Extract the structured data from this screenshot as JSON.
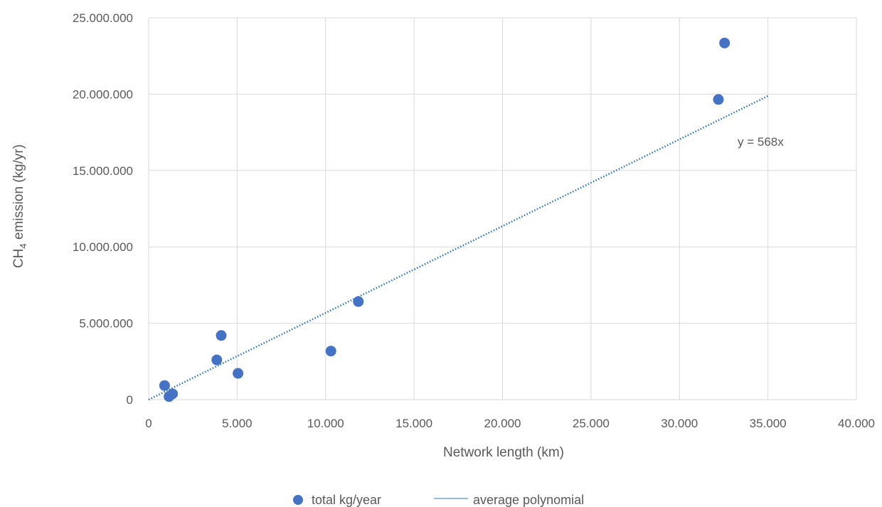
{
  "chart_data": {
    "type": "scatter",
    "xlabel": "Network length (km)",
    "ylabel_main": "CH",
    "ylabel_sub": "4",
    "ylabel_rest": " emission (kg/yr)",
    "xlim": [
      0,
      40000
    ],
    "ylim": [
      0,
      25000000
    ],
    "x_ticks": [
      "0",
      "5.000",
      "10.000",
      "15.000",
      "20.000",
      "25.000",
      "30.000",
      "35.000",
      "40.000"
    ],
    "y_ticks": [
      "0",
      "5.000.000",
      "10.000.000",
      "15.000.000",
      "20.000.000",
      "25.000.000"
    ],
    "grid": true,
    "series": [
      {
        "name": "total kg/year",
        "marker": "circle",
        "color": "#4472c4",
        "points": [
          [
            900,
            920000
          ],
          [
            1150,
            200000
          ],
          [
            1350,
            380000
          ],
          [
            3850,
            2600000
          ],
          [
            4100,
            4200000
          ],
          [
            5050,
            1720000
          ],
          [
            10300,
            3180000
          ],
          [
            11850,
            6420000
          ],
          [
            32200,
            19650000
          ],
          [
            32550,
            23350000
          ]
        ]
      }
    ],
    "trendline": {
      "name": "average polynomial",
      "style": "dotted",
      "color": "#2e75b6",
      "slope": 568,
      "x_range": [
        0,
        35000
      ],
      "equation_label": "y = 568x"
    },
    "legend_position": "bottom"
  }
}
